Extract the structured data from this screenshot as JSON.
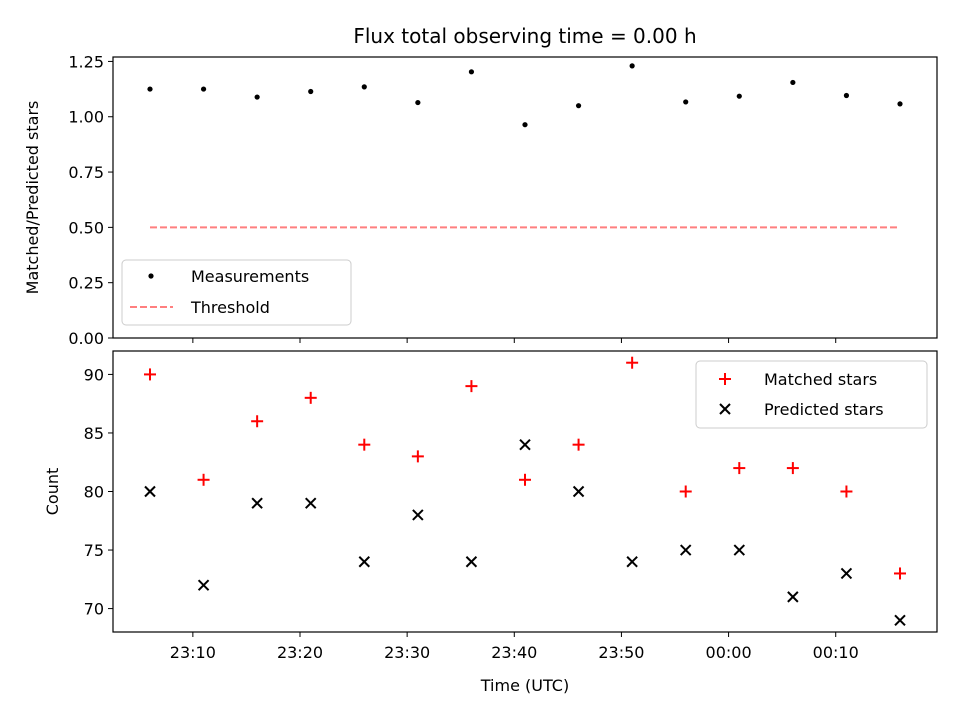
{
  "chart_data": [
    {
      "type": "scatter",
      "title": "Flux total observing time = 0.00 h",
      "xlabel": "",
      "ylabel": "Matched/Predicted stars",
      "ylim": [
        0,
        1.27
      ],
      "yticks": [
        "0.00",
        "0.25",
        "0.50",
        "0.75",
        "1.00",
        "1.25"
      ],
      "x": [
        "23:06",
        "23:11",
        "23:16",
        "23:21",
        "23:26",
        "23:31",
        "23:36",
        "23:41",
        "23:46",
        "23:51",
        "23:56",
        "00:01",
        "00:06",
        "00:11",
        "00:16"
      ],
      "series": [
        {
          "name": "Measurements",
          "values": [
            1.125,
            1.125,
            1.089,
            1.114,
            1.135,
            1.064,
            1.203,
            0.964,
            1.05,
            1.23,
            1.067,
            1.093,
            1.155,
            1.096,
            1.058
          ],
          "color": "#000000",
          "marker": "dot"
        },
        {
          "name": "Threshold",
          "values": [
            0.5,
            0.5,
            0.5,
            0.5,
            0.5,
            0.5,
            0.5,
            0.5,
            0.5,
            0.5,
            0.5,
            0.5,
            0.5,
            0.5,
            0.5
          ],
          "color": "#ff7f7f",
          "style": "dashed-line"
        }
      ],
      "legend": "lower-left",
      "grid": false
    },
    {
      "type": "scatter",
      "title": "",
      "xlabel": "Time (UTC)",
      "ylabel": "Count",
      "ylim": [
        68,
        92
      ],
      "yticks": [
        "70",
        "75",
        "80",
        "85",
        "90"
      ],
      "xticks": [
        "23:10",
        "23:20",
        "23:30",
        "23:40",
        "23:50",
        "00:00",
        "00:10"
      ],
      "x": [
        "23:06",
        "23:11",
        "23:16",
        "23:21",
        "23:26",
        "23:31",
        "23:36",
        "23:41",
        "23:46",
        "23:51",
        "23:56",
        "00:01",
        "00:06",
        "00:11",
        "00:16"
      ],
      "series": [
        {
          "name": "Matched stars",
          "values": [
            90,
            81,
            86,
            88,
            84,
            83,
            89,
            81,
            84,
            91,
            80,
            82,
            82,
            80,
            73
          ],
          "color": "#ff0000",
          "marker": "plus"
        },
        {
          "name": "Predicted stars",
          "values": [
            80,
            72,
            79,
            79,
            74,
            78,
            74,
            84,
            80,
            74,
            75,
            75,
            71,
            73,
            69
          ],
          "color": "#000000",
          "marker": "x"
        }
      ],
      "legend": "upper-right",
      "grid": false
    }
  ]
}
